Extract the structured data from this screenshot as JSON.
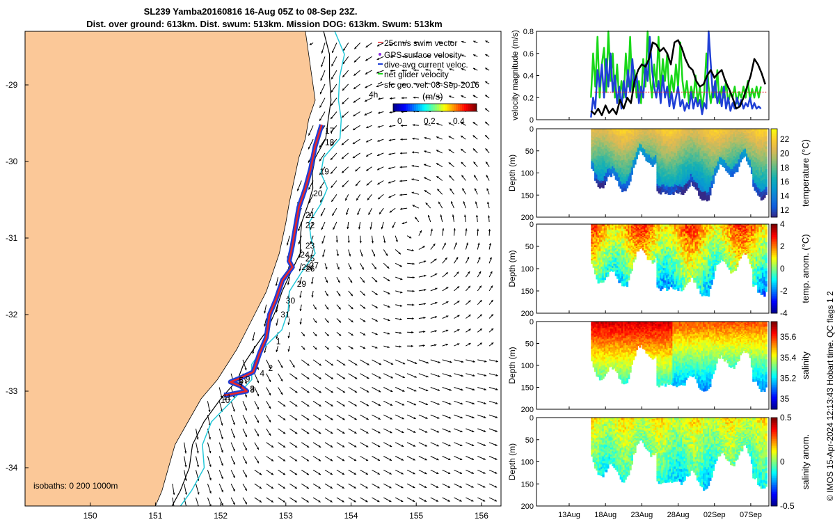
{
  "title_line1": "SL239 Yamba20160816 16-Aug 05Z to 08-Sep 23Z.",
  "title_line2": "Dist. over ground: 613km. Dist. swum: 513km. Mission DOG: 613km. Swum: 513km",
  "credit": "© IMOS 15-Apr-2024 12:13:43 Hobart time. QC flags 1  2",
  "colors": {
    "land": "#fbc898",
    "track": "#e8262a",
    "dive_current": "#1f3fd6",
    "net_velocity": "#18d818",
    "isobath_200": "#000000",
    "isobath_1000": "#22c8d8",
    "vel_black": "#000000"
  },
  "map_legend": {
    "items": [
      "25cm/s swim vector",
      "GPS surface velocity",
      "dive-avg current veloc.",
      "net glider velocity",
      "sfc geo. vel. 08-Sep-2016"
    ],
    "label_4h": "4h",
    "colorbar_label": "(m/s)",
    "colorbar_ticks": [
      "0",
      "0.2",
      "0.4"
    ],
    "isobaths_label": "isobaths: 0   200  1000m"
  },
  "chart_data": [
    {
      "type": "line",
      "panel": "map",
      "x_ticks": [
        "150",
        "151",
        "152",
        "153",
        "154",
        "155",
        "156"
      ],
      "y_ticks": [
        "-29",
        "-30",
        "-31",
        "-32",
        "-33",
        "-34"
      ],
      "xlim": [
        149,
        156.3
      ],
      "ylim": [
        -34.5,
        -28.3
      ],
      "day_labels": [
        {
          "label": "17",
          "lon": 153.6,
          "lat": -29.6
        },
        {
          "label": "18",
          "lon": 153.6,
          "lat": -29.75
        },
        {
          "label": "19",
          "lon": 153.52,
          "lat": -30.13
        },
        {
          "label": "20",
          "lon": 153.42,
          "lat": -30.42
        },
        {
          "label": "21",
          "lon": 153.3,
          "lat": -30.7
        },
        {
          "label": "22",
          "lon": 153.3,
          "lat": -30.83
        },
        {
          "label": "23",
          "lon": 153.3,
          "lat": -31.1
        },
        {
          "label": "24",
          "lon": 153.22,
          "lat": -31.22
        },
        {
          "label": "25",
          "lon": 153.3,
          "lat": -31.27
        },
        {
          "label": "26",
          "lon": 153.3,
          "lat": -31.4
        },
        {
          "label": "27",
          "lon": 153.36,
          "lat": -31.36
        },
        {
          "label": "28",
          "lon": 153.24,
          "lat": -31.38
        },
        {
          "label": "29",
          "lon": 153.17,
          "lat": -31.6
        },
        {
          "label": "30",
          "lon": 153.0,
          "lat": -31.82
        },
        {
          "label": "31",
          "lon": 152.92,
          "lat": -32.0
        },
        {
          "label": "1",
          "lon": 152.85,
          "lat": -32.35
        },
        {
          "label": "2",
          "lon": 152.73,
          "lat": -32.7
        },
        {
          "label": "3",
          "lon": 152.45,
          "lat": -32.97
        },
        {
          "label": "4",
          "lon": 152.6,
          "lat": -32.77
        },
        {
          "label": "5",
          "lon": 152.28,
          "lat": -32.86
        },
        {
          "label": "6",
          "lon": 152.27,
          "lat": -32.88
        },
        {
          "label": "7",
          "lon": 152.28,
          "lat": -32.92
        },
        {
          "label": "8",
          "lon": 152.45,
          "lat": -32.98
        },
        {
          "label": "9",
          "lon": 152.38,
          "lat": -32.84
        },
        {
          "label": "10",
          "lon": 152.0,
          "lat": -33.12
        },
        {
          "label": "11",
          "lon": 152.03,
          "lat": -33.08
        }
      ]
    },
    {
      "type": "line",
      "panel": "velocity",
      "ylabel": "velocity magnitude (m/s)",
      "ylim": [
        0,
        0.8
      ],
      "y_ticks": [
        "0",
        "0.2",
        "0.4",
        "0.6",
        "0.8"
      ],
      "x_ticks": [
        "13Aug",
        "18Aug",
        "23Aug",
        "28Aug",
        "02Sep",
        "07Sep"
      ],
      "xlim": [
        8.5,
        40.5
      ],
      "series_black": [
        [
          16.0,
          0.08
        ],
        [
          16.5,
          0.05
        ],
        [
          17.0,
          0.1
        ],
        [
          17.5,
          0.04
        ],
        [
          18.0,
          0.13
        ],
        [
          18.5,
          0.06
        ],
        [
          19.0,
          0.1
        ],
        [
          19.5,
          0.05
        ],
        [
          20.0,
          0.18
        ],
        [
          20.5,
          0.1
        ],
        [
          21.0,
          0.2
        ],
        [
          21.5,
          0.15
        ],
        [
          22.0,
          0.35
        ],
        [
          22.5,
          0.45
        ],
        [
          23.0,
          0.5
        ],
        [
          23.5,
          0.48
        ],
        [
          24.0,
          0.55
        ],
        [
          24.5,
          0.7
        ],
        [
          25.0,
          0.68
        ],
        [
          25.5,
          0.62
        ],
        [
          26.0,
          0.65
        ],
        [
          26.5,
          0.6
        ],
        [
          27.0,
          0.5
        ],
        [
          27.5,
          0.7
        ],
        [
          28.0,
          0.72
        ],
        [
          28.5,
          0.65
        ],
        [
          29.0,
          0.55
        ],
        [
          29.5,
          0.48
        ],
        [
          30.0,
          0.45
        ],
        [
          30.5,
          0.35
        ],
        [
          31.0,
          0.3
        ],
        [
          31.5,
          0.32
        ],
        [
          32.0,
          0.4
        ],
        [
          32.5,
          0.45
        ],
        [
          33.0,
          0.38
        ],
        [
          33.5,
          0.42
        ],
        [
          34.0,
          0.45
        ],
        [
          34.5,
          0.35
        ],
        [
          35.0,
          0.28
        ],
        [
          35.5,
          0.2
        ],
        [
          36.0,
          0.1
        ],
        [
          36.5,
          0.12
        ],
        [
          37.0,
          0.2
        ],
        [
          37.5,
          0.3
        ],
        [
          38.0,
          0.4
        ],
        [
          38.5,
          0.55
        ],
        [
          39.0,
          0.5
        ],
        [
          39.5,
          0.42
        ],
        [
          40.0,
          0.32
        ]
      ],
      "series_blue": [
        [
          16.0,
          0.02
        ],
        [
          16.3,
          0.2
        ],
        [
          16.6,
          0.1
        ],
        [
          16.9,
          0.45
        ],
        [
          17.2,
          0.3
        ],
        [
          17.5,
          0.5
        ],
        [
          17.8,
          0.2
        ],
        [
          18.1,
          0.55
        ],
        [
          18.4,
          0.3
        ],
        [
          18.7,
          0.6
        ],
        [
          19.0,
          0.25
        ],
        [
          19.3,
          0.4
        ],
        [
          19.6,
          0.15
        ],
        [
          19.9,
          0.3
        ],
        [
          20.2,
          0.1
        ],
        [
          20.5,
          0.35
        ],
        [
          20.8,
          0.2
        ],
        [
          21.1,
          0.45
        ],
        [
          21.4,
          0.25
        ],
        [
          21.7,
          0.55
        ],
        [
          22.0,
          0.3
        ],
        [
          22.3,
          0.4
        ],
        [
          22.6,
          0.15
        ],
        [
          22.9,
          0.3
        ],
        [
          23.2,
          0.2
        ],
        [
          23.5,
          0.5
        ],
        [
          23.8,
          0.35
        ],
        [
          24.1,
          0.75
        ],
        [
          24.4,
          0.45
        ],
        [
          24.7,
          0.3
        ],
        [
          25.0,
          0.2
        ],
        [
          25.3,
          0.35
        ],
        [
          25.6,
          0.15
        ],
        [
          25.9,
          0.4
        ],
        [
          26.2,
          0.2
        ],
        [
          26.5,
          0.3
        ],
        [
          26.8,
          0.12
        ],
        [
          27.1,
          0.25
        ],
        [
          27.4,
          0.1
        ],
        [
          27.7,
          0.2
        ],
        [
          28.0,
          0.3
        ],
        [
          28.3,
          0.12
        ],
        [
          28.6,
          0.18
        ],
        [
          28.9,
          0.08
        ],
        [
          29.2,
          0.15
        ],
        [
          29.5,
          0.1
        ],
        [
          29.8,
          0.25
        ],
        [
          30.1,
          0.1
        ],
        [
          30.4,
          0.2
        ],
        [
          30.7,
          0.12
        ],
        [
          31.0,
          0.18
        ],
        [
          31.3,
          0.05
        ],
        [
          31.6,
          0.15
        ],
        [
          31.9,
          0.1
        ],
        [
          32.2,
          0.8
        ],
        [
          32.5,
          0.5
        ],
        [
          32.8,
          0.2
        ],
        [
          33.1,
          0.35
        ],
        [
          33.4,
          0.15
        ],
        [
          33.7,
          0.25
        ],
        [
          34.0,
          0.12
        ],
        [
          34.3,
          0.3
        ],
        [
          34.6,
          0.1
        ],
        [
          34.9,
          0.2
        ],
        [
          35.2,
          0.08
        ],
        [
          35.5,
          0.15
        ],
        [
          35.8,
          0.1
        ],
        [
          36.1,
          0.2
        ],
        [
          36.4,
          0.12
        ],
        [
          36.7,
          0.18
        ],
        [
          37.0,
          0.1
        ],
        [
          37.3,
          0.15
        ],
        [
          37.6,
          0.12
        ],
        [
          37.9,
          0.2
        ],
        [
          38.2,
          0.1
        ],
        [
          38.5,
          0.15
        ],
        [
          38.8,
          0.1
        ],
        [
          39.1,
          0.12
        ],
        [
          39.4,
          0.1
        ]
      ],
      "series_green": [
        [
          16.0,
          0.2
        ],
        [
          16.3,
          0.6
        ],
        [
          16.6,
          0.3
        ],
        [
          16.9,
          0.75
        ],
        [
          17.2,
          0.2
        ],
        [
          17.5,
          0.5
        ],
        [
          17.8,
          0.65
        ],
        [
          18.1,
          0.25
        ],
        [
          18.4,
          0.8
        ],
        [
          18.7,
          0.35
        ],
        [
          19.0,
          0.6
        ],
        [
          19.3,
          0.2
        ],
        [
          19.6,
          0.5
        ],
        [
          19.9,
          0.15
        ],
        [
          20.2,
          0.35
        ],
        [
          20.5,
          0.2
        ],
        [
          20.8,
          0.6
        ],
        [
          21.1,
          0.3
        ],
        [
          21.4,
          0.75
        ],
        [
          21.7,
          0.25
        ],
        [
          22.0,
          0.45
        ],
        [
          22.3,
          0.2
        ],
        [
          22.6,
          0.35
        ],
        [
          22.9,
          0.15
        ],
        [
          23.2,
          0.55
        ],
        [
          23.5,
          0.3
        ],
        [
          23.8,
          0.8
        ],
        [
          24.1,
          0.4
        ],
        [
          24.4,
          0.2
        ],
        [
          24.7,
          0.5
        ],
        [
          25.0,
          0.3
        ],
        [
          25.3,
          0.75
        ],
        [
          25.6,
          0.25
        ],
        [
          25.9,
          0.55
        ],
        [
          26.2,
          0.35
        ],
        [
          26.5,
          0.6
        ],
        [
          26.8,
          0.2
        ],
        [
          27.1,
          0.4
        ],
        [
          27.4,
          0.25
        ],
        [
          27.7,
          0.5
        ],
        [
          28.0,
          0.3
        ],
        [
          28.3,
          0.7
        ],
        [
          28.6,
          0.35
        ],
        [
          28.9,
          0.2
        ],
        [
          29.2,
          0.35
        ],
        [
          29.5,
          0.15
        ],
        [
          29.8,
          0.3
        ],
        [
          30.1,
          0.2
        ],
        [
          30.4,
          0.4
        ],
        [
          30.7,
          0.15
        ],
        [
          31.0,
          0.3
        ],
        [
          31.3,
          0.1
        ],
        [
          31.6,
          0.25
        ],
        [
          31.9,
          0.6
        ],
        [
          32.2,
          0.3
        ],
        [
          32.5,
          0.15
        ],
        [
          32.8,
          0.3
        ],
        [
          33.1,
          0.2
        ],
        [
          33.4,
          0.45
        ],
        [
          33.7,
          0.15
        ],
        [
          34.0,
          0.3
        ],
        [
          34.3,
          0.2
        ],
        [
          34.6,
          0.35
        ],
        [
          34.9,
          0.15
        ],
        [
          35.2,
          0.25
        ],
        [
          35.5,
          0.2
        ],
        [
          35.8,
          0.3
        ],
        [
          36.1,
          0.15
        ],
        [
          36.4,
          0.25
        ],
        [
          36.7,
          0.2
        ],
        [
          37.0,
          0.3
        ],
        [
          37.3,
          0.2
        ],
        [
          37.6,
          0.35
        ],
        [
          37.9,
          0.18
        ],
        [
          38.2,
          0.28
        ],
        [
          38.5,
          0.2
        ],
        [
          38.8,
          0.3
        ],
        [
          39.1,
          0.2
        ],
        [
          39.4,
          0.3
        ]
      ],
      "red_markers_level": 0.25,
      "red_markers_range": [
        16.5,
        40
      ]
    },
    {
      "type": "heatmap",
      "panel": "temperature",
      "ylabel": "Depth (m)",
      "y_ticks": [
        "0",
        "50",
        "100",
        "150",
        "200"
      ],
      "ylim": [
        0,
        200
      ],
      "colorbar_label": "temperature (°C)",
      "colorbar_ticks": [
        "12",
        "14",
        "16",
        "18",
        "20",
        "22"
      ],
      "clim": [
        11,
        23.5
      ],
      "colormap": "parula"
    },
    {
      "type": "heatmap",
      "panel": "temp_anom",
      "ylabel": "Depth (m)",
      "y_ticks": [
        "0",
        "50",
        "100",
        "150",
        "200"
      ],
      "ylim": [
        0,
        200
      ],
      "colorbar_label": "temp. anom. (°C)",
      "colorbar_ticks": [
        "-4",
        "-2",
        "0",
        "2",
        "4"
      ],
      "clim": [
        -4,
        4
      ],
      "colormap": "jet"
    },
    {
      "type": "heatmap",
      "panel": "salinity",
      "ylabel": "Depth (m)",
      "y_ticks": [
        "0",
        "50",
        "100",
        "150",
        "200"
      ],
      "ylim": [
        0,
        200
      ],
      "colorbar_label": "salinity",
      "colorbar_ticks": [
        "35",
        "35.2",
        "35.4",
        "35.6"
      ],
      "clim": [
        34.9,
        35.75
      ],
      "colormap": "jet"
    },
    {
      "type": "heatmap",
      "panel": "sal_anom",
      "ylabel": "Depth (m)",
      "y_ticks": [
        "0",
        "50",
        "100",
        "150",
        "200"
      ],
      "ylim": [
        0,
        200
      ],
      "colorbar_label": "salinity anom.",
      "colorbar_ticks": [
        "-0.5",
        "0",
        "0.5"
      ],
      "clim": [
        -0.5,
        0.5
      ],
      "colormap": "jet",
      "x_ticks": [
        "13Aug",
        "18Aug",
        "23Aug",
        "28Aug",
        "02Sep",
        "07Sep"
      ]
    }
  ]
}
